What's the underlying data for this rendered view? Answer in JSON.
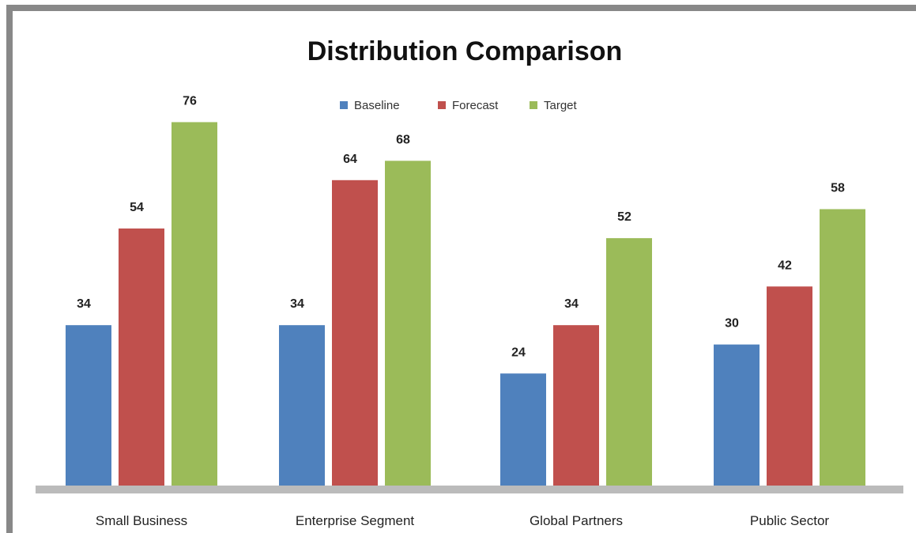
{
  "chart_data": {
    "type": "bar",
    "title": "Distribution Comparison",
    "categories": [
      "Small Business",
      "Enterprise Segment",
      "Global Partners",
      "Public Sector"
    ],
    "series": [
      {
        "name": "Baseline",
        "color": "#4f81bd",
        "values": [
          34,
          34,
          24,
          30
        ]
      },
      {
        "name": "Forecast",
        "color": "#c0504d",
        "values": [
          54,
          64,
          34,
          42
        ]
      },
      {
        "name": "Target",
        "color": "#9bbb59",
        "values": [
          76,
          68,
          52,
          58
        ]
      }
    ],
    "data_labels": [
      [
        "34",
        "54",
        "76"
      ],
      [
        "34",
        "64",
        "68"
      ],
      [
        "24",
        "34",
        "52"
      ],
      [
        "30",
        "42",
        "58"
      ]
    ],
    "ylim": [
      0,
      80
    ],
    "legend_position": "top-center",
    "grid": false,
    "xlabel": "",
    "ylabel": ""
  }
}
